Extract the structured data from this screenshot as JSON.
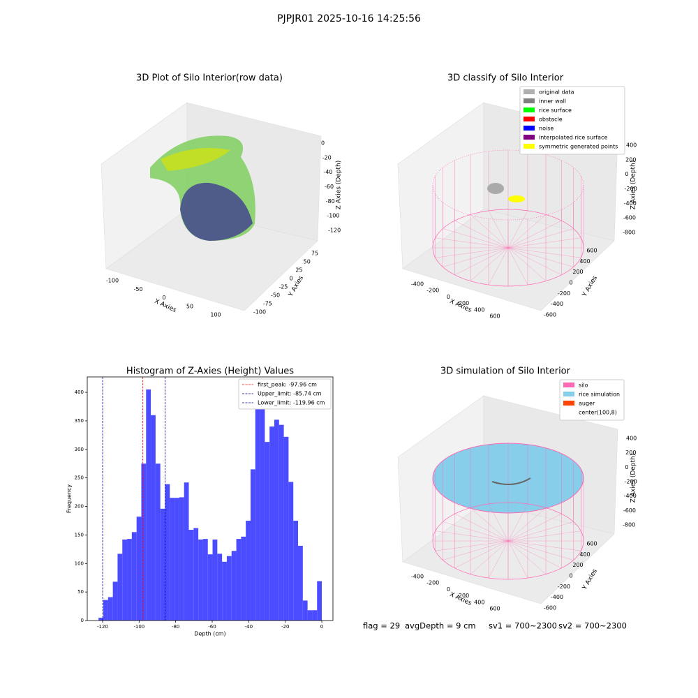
{
  "title": "PJPJR01 2025-10-16 14:25:56",
  "chart_data": [
    {
      "type": "scatter3d",
      "title": "3D Plot of Silo Interior(row data)",
      "xlabel": "X Axies",
      "ylabel": "Y Axies",
      "zlabel": "Z Axies (Depth)",
      "xticks": [
        -100,
        -50,
        0,
        50,
        100
      ],
      "yticks": [
        -100,
        -75,
        -50,
        -25,
        0,
        25,
        50,
        75
      ],
      "zticks": [
        -120,
        -100,
        -80,
        -60,
        -40,
        -20,
        0
      ]
    },
    {
      "type": "scatter3d",
      "title": "3D classify of Silo Interior",
      "xlabel": "X Axies",
      "ylabel": "Y Axies",
      "zlabel": "Z Axies (Depth)",
      "xticks": [
        -400,
        -200,
        0,
        200,
        400,
        600
      ],
      "yticks": [
        -600,
        -400,
        -200,
        0,
        200,
        400,
        600
      ],
      "zticks": [
        -800,
        -600,
        -400,
        -200,
        0,
        200,
        400
      ],
      "legend": [
        {
          "name": "original data",
          "color": "#b0b0b0"
        },
        {
          "name": "inner wall",
          "color": "#808080"
        },
        {
          "name": "rice surface",
          "color": "#00ff00"
        },
        {
          "name": "obstacle",
          "color": "#ff0000"
        },
        {
          "name": "noise",
          "color": "#0000ff"
        },
        {
          "name": "interpolated rice surface",
          "color": "#800080"
        },
        {
          "name": "symmetric generated points",
          "color": "#ffff00"
        }
      ]
    },
    {
      "type": "histogram",
      "title": "Histogram of Z-Axies (Height) Values",
      "xlabel": "Depth (cm)",
      "ylabel": "Frequency",
      "color": "#4b4bff",
      "bins": [
        -122.2,
        -119.6,
        -117.0,
        -114.4,
        -111.8,
        -109.2,
        -106.6,
        -104.0,
        -101.4,
        -98.8,
        -96.2,
        -93.6,
        -91.0,
        -88.4,
        -85.8,
        -83.2,
        -80.6,
        -78.0,
        -75.4,
        -72.8,
        -70.2,
        -67.6,
        -65.0,
        -62.4,
        -59.8,
        -57.2,
        -54.6,
        -52.0,
        -49.4,
        -46.8,
        -44.2,
        -41.6,
        -39.0,
        -36.4,
        -33.8,
        -31.2,
        -28.6,
        -26.0,
        -23.4,
        -20.8,
        -18.2,
        -15.6,
        -13.0,
        -10.4,
        -7.8,
        -5.2,
        -2.6,
        0.0
      ],
      "values": [
        5,
        36,
        41,
        68,
        117,
        142,
        143,
        155,
        182,
        275,
        405,
        360,
        275,
        196,
        239,
        215,
        215,
        216,
        242,
        159,
        162,
        142,
        143,
        116,
        142,
        117,
        103,
        113,
        122,
        143,
        147,
        175,
        265,
        375,
        403,
        313,
        340,
        352,
        343,
        322,
        243,
        175,
        131,
        35,
        18,
        18,
        69
      ],
      "xlim": [
        -128.4,
        6.1
      ],
      "ylim": [
        0,
        427
      ],
      "xticks": [
        -120,
        -100,
        -80,
        -60,
        -40,
        -20,
        0
      ],
      "yticks": [
        0,
        50,
        100,
        150,
        200,
        250,
        300,
        350,
        400
      ],
      "vlines": [
        {
          "name": "first_peak: -97.96 cm",
          "value": -97.96,
          "color": "#ff0000"
        },
        {
          "name": "Upper_limit: -85.74 cm",
          "value": -85.74,
          "color": "#00008b"
        },
        {
          "name": "Lower_limit: -119.96 cm",
          "value": -119.96,
          "color": "#00008b"
        }
      ]
    },
    {
      "type": "scatter3d",
      "title": "3D simulation of Silo Interior",
      "xlabel": "X Axies",
      "ylabel": "Y Axies",
      "zlabel": "Z Axies (Depth)",
      "xticks": [
        -400,
        -200,
        0,
        200,
        400,
        600
      ],
      "yticks": [
        -600,
        -400,
        -200,
        0,
        200,
        400,
        600
      ],
      "zticks": [
        -800,
        -600,
        -400,
        -200,
        0,
        200,
        400
      ],
      "legend": [
        {
          "name": "silo",
          "color": "#ff69b4"
        },
        {
          "name": "rice simulation",
          "color": "#87ceeb"
        },
        {
          "name": "auger",
          "color": "#ff4500"
        },
        {
          "name": "center(100,8)",
          "color": "#ffffff"
        }
      ]
    }
  ],
  "status": [
    "flag = 29",
    "avgDepth = 9 cm",
    "sv1 = 700~2300",
    "sv2 = 700~2300"
  ]
}
